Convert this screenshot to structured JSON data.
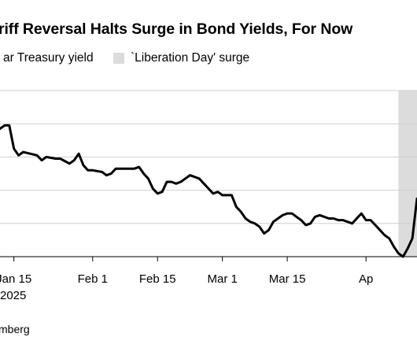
{
  "title": "riff Reversal Halts Surge in Bond Yields, For Now",
  "legend": [
    {
      "label": "ar Treasury yield",
      "kind": "line",
      "color": "#000000"
    },
    {
      "label": "`Liberation Day' surge",
      "kind": "band",
      "color": "#dcdcdc"
    }
  ],
  "year_label": "2025",
  "source": "mberg",
  "chart_data": {
    "type": "line",
    "title": "riff Reversal Halts Surge in Bond Yields, For Now",
    "x_tick_labels": [
      "Jan 15",
      "Feb 1",
      "Feb 15",
      "Mar 1",
      "Mar 15",
      "Ap"
    ],
    "x_tick_dates": [
      "2025-01-15",
      "2025-02-01",
      "2025-02-15",
      "2025-03-01",
      "2025-03-15",
      "2025-04-01"
    ],
    "x_range": [
      "2025-01-12",
      "2025-04-12"
    ],
    "y_range": [
      4.0,
      5.0
    ],
    "grid": true,
    "y_gridlines": [
      4.2,
      4.4,
      4.6,
      4.8,
      5.0
    ],
    "shaded_band": {
      "label": "`Liberation Day' surge",
      "from": "2025-04-08",
      "to": "2025-04-12",
      "color": "#dcdcdc"
    },
    "series": [
      {
        "name": "ar Treasury yield",
        "color": "#000000",
        "points": [
          [
            "2025-01-12",
            4.77
          ],
          [
            "2025-01-13",
            4.79
          ],
          [
            "2025-01-14",
            4.79
          ],
          [
            "2025-01-15",
            4.65
          ],
          [
            "2025-01-16",
            4.61
          ],
          [
            "2025-01-17",
            4.63
          ],
          [
            "2025-01-20",
            4.61
          ],
          [
            "2025-01-21",
            4.58
          ],
          [
            "2025-01-22",
            4.6
          ],
          [
            "2025-01-24",
            4.59
          ],
          [
            "2025-01-25",
            4.59
          ],
          [
            "2025-01-27",
            4.56
          ],
          [
            "2025-01-28",
            4.58
          ],
          [
            "2025-01-29",
            4.62
          ],
          [
            "2025-01-30",
            4.55
          ],
          [
            "2025-01-31",
            4.52
          ],
          [
            "2025-02-01",
            4.52
          ],
          [
            "2025-02-03",
            4.51
          ],
          [
            "2025-02-04",
            4.49
          ],
          [
            "2025-02-05",
            4.5
          ],
          [
            "2025-02-06",
            4.53
          ],
          [
            "2025-02-07",
            4.53
          ],
          [
            "2025-02-09",
            4.53
          ],
          [
            "2025-02-10",
            4.53
          ],
          [
            "2025-02-11",
            4.54
          ],
          [
            "2025-02-12",
            4.5
          ],
          [
            "2025-02-13",
            4.47
          ],
          [
            "2025-02-14",
            4.41
          ],
          [
            "2025-02-15",
            4.38
          ],
          [
            "2025-02-16",
            4.39
          ],
          [
            "2025-02-17",
            4.45
          ],
          [
            "2025-02-18",
            4.45
          ],
          [
            "2025-02-19",
            4.44
          ],
          [
            "2025-02-20",
            4.45
          ],
          [
            "2025-02-21",
            4.47
          ],
          [
            "2025-02-22",
            4.49
          ],
          [
            "2025-02-23",
            4.48
          ],
          [
            "2025-02-24",
            4.47
          ],
          [
            "2025-02-25",
            4.44
          ],
          [
            "2025-02-26",
            4.41
          ],
          [
            "2025-02-27",
            4.38
          ],
          [
            "2025-02-28",
            4.39
          ],
          [
            "2025-03-01",
            4.37
          ],
          [
            "2025-03-03",
            4.37
          ],
          [
            "2025-03-04",
            4.3
          ],
          [
            "2025-03-05",
            4.27
          ],
          [
            "2025-03-06",
            4.23
          ],
          [
            "2025-03-07",
            4.21
          ],
          [
            "2025-03-08",
            4.2
          ],
          [
            "2025-03-09",
            4.18
          ],
          [
            "2025-03-10",
            4.14
          ],
          [
            "2025-03-11",
            4.16
          ],
          [
            "2025-03-12",
            4.21
          ],
          [
            "2025-03-13",
            4.23
          ],
          [
            "2025-03-14",
            4.25
          ],
          [
            "2025-03-15",
            4.26
          ],
          [
            "2025-03-16",
            4.26
          ],
          [
            "2025-03-17",
            4.24
          ],
          [
            "2025-03-18",
            4.22
          ],
          [
            "2025-03-19",
            4.19
          ],
          [
            "2025-03-20",
            4.2
          ],
          [
            "2025-03-21",
            4.24
          ],
          [
            "2025-03-22",
            4.25
          ],
          [
            "2025-03-23",
            4.24
          ],
          [
            "2025-03-24",
            4.23
          ],
          [
            "2025-03-25",
            4.23
          ],
          [
            "2025-03-26",
            4.22
          ],
          [
            "2025-03-27",
            4.22
          ],
          [
            "2025-03-28",
            4.21
          ],
          [
            "2025-03-29",
            4.2
          ],
          [
            "2025-03-30",
            4.23
          ],
          [
            "2025-03-31",
            4.26
          ],
          [
            "2025-04-01",
            4.22
          ],
          [
            "2025-04-02",
            4.22
          ],
          [
            "2025-04-03",
            4.19
          ],
          [
            "2025-04-04",
            4.16
          ],
          [
            "2025-04-05",
            4.13
          ],
          [
            "2025-04-06",
            4.11
          ],
          [
            "2025-04-07",
            4.06
          ],
          [
            "2025-04-08",
            4.02
          ],
          [
            "2025-04-09",
            4.0
          ],
          [
            "2025-04-10",
            4.05
          ],
          [
            "2025-04-11",
            4.11
          ],
          [
            "2025-04-12",
            4.35
          ]
        ]
      }
    ]
  }
}
